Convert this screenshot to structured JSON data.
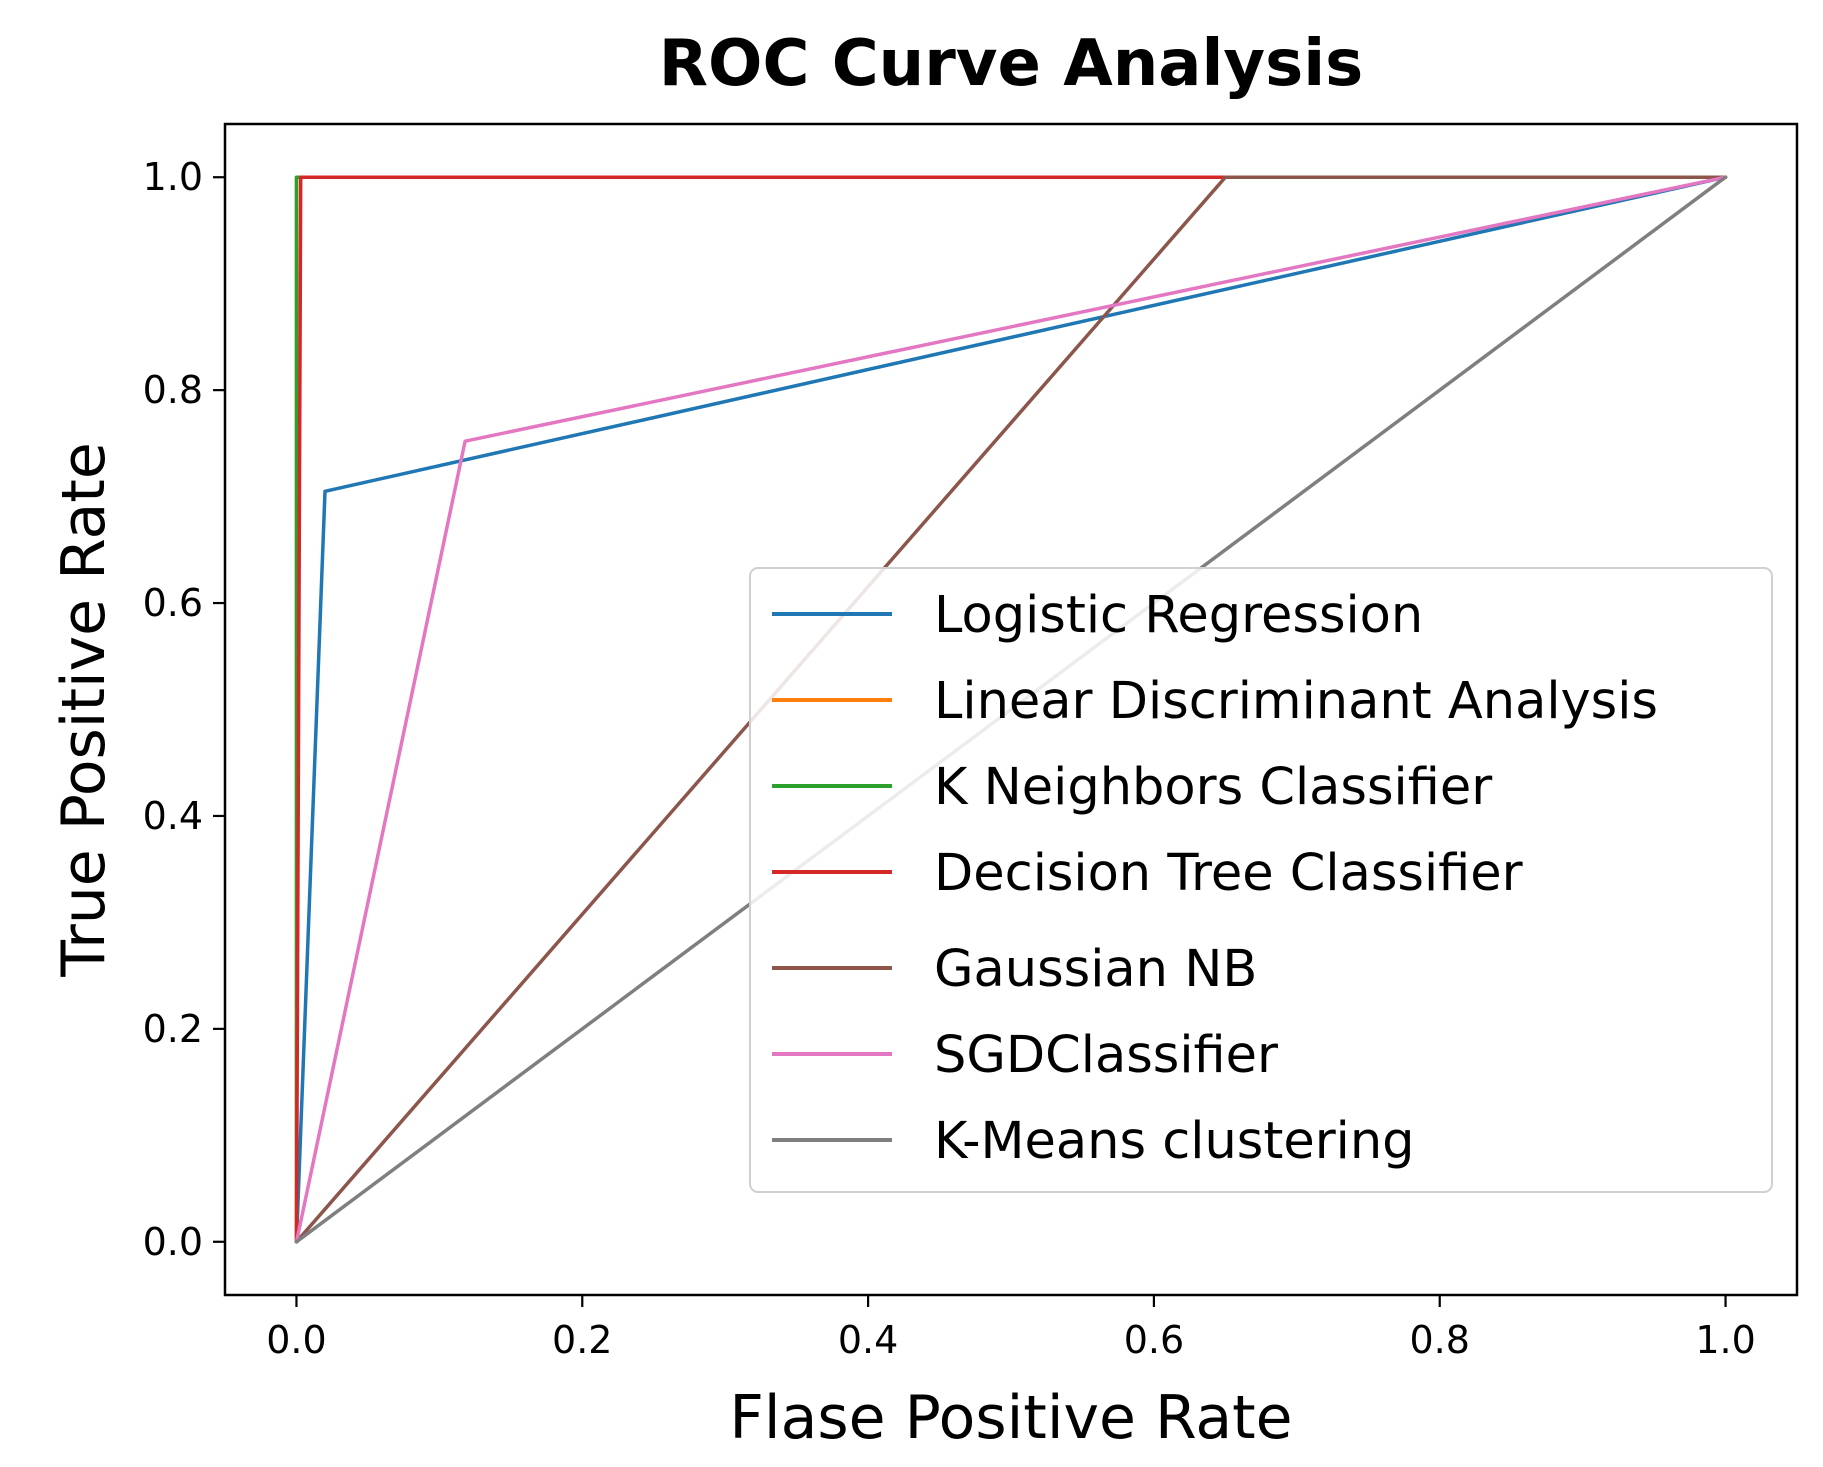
{
  "chart_data": {
    "type": "line",
    "title": "ROC Curve Analysis",
    "xlabel": "Flase Positive Rate",
    "ylabel": "True Positive Rate",
    "xlim": [
      -0.05,
      1.05
    ],
    "ylim": [
      -0.05,
      1.05
    ],
    "xticks": [
      0.0,
      0.2,
      0.4,
      0.6,
      0.8,
      1.0
    ],
    "yticks": [
      0.0,
      0.2,
      0.4,
      0.6,
      0.8,
      1.0
    ],
    "xtick_labels": [
      "0.0",
      "0.2",
      "0.4",
      "0.6",
      "0.8",
      "1.0"
    ],
    "ytick_labels": [
      "0.0",
      "0.2",
      "0.4",
      "0.6",
      "0.8",
      "1.0"
    ],
    "grid": false,
    "legend_position": "center-right",
    "series": [
      {
        "name": "Logistic Regression",
        "color": "#1f77b4",
        "x": [
          0.0,
          0.02,
          1.0
        ],
        "y": [
          0.0,
          0.705,
          1.0
        ]
      },
      {
        "name": "Linear Discriminant Analysis",
        "color": "#ff7f0e",
        "x": [
          0.0,
          0.0,
          1.0
        ],
        "y": [
          0.0,
          1.0,
          1.0
        ]
      },
      {
        "name": "K Neighbors Classifier",
        "color": "#2ca02c",
        "x": [
          0.0,
          0.0,
          1.0
        ],
        "y": [
          0.0,
          1.0,
          1.0
        ]
      },
      {
        "name": "Decision Tree Classifier",
        "color": "#d62728",
        "x": [
          0.0,
          0.003,
          1.0
        ],
        "y": [
          0.0,
          1.0,
          1.0
        ]
      },
      {
        "name": "Gaussian NB",
        "color": "#8c564b",
        "x": [
          0.0,
          0.65,
          1.0
        ],
        "y": [
          0.0,
          1.0,
          1.0
        ]
      },
      {
        "name": "SGDClassifier",
        "color": "#e377c2",
        "x": [
          0.0,
          0.118,
          1.0
        ],
        "y": [
          0.0,
          0.752,
          1.0
        ]
      },
      {
        "name": "K-Means clustering",
        "color": "#7f7f7f",
        "x": [
          0.0,
          1.0
        ],
        "y": [
          0.0,
          1.0
        ]
      }
    ]
  }
}
